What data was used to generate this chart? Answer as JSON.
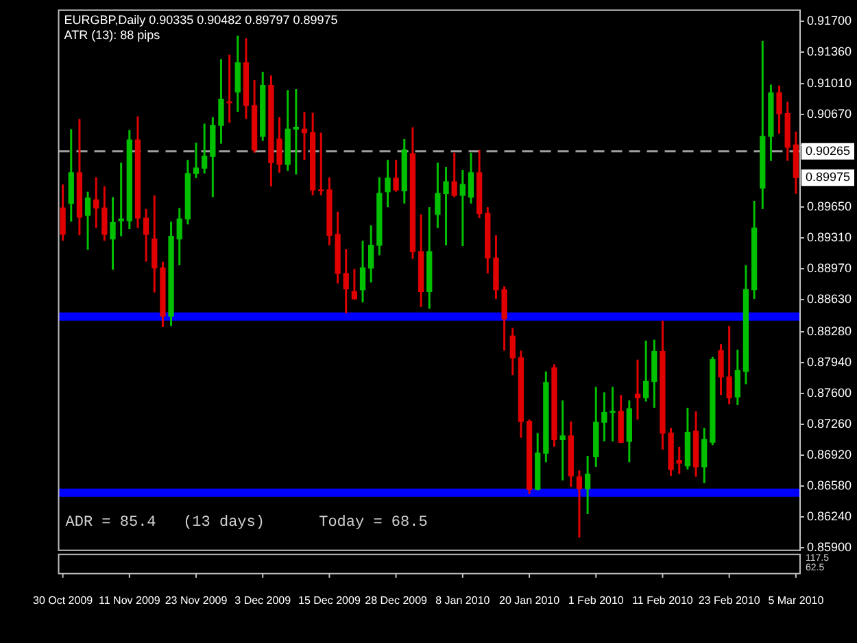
{
  "chart_data": {
    "type": "candlestick",
    "title": "EURGBP,Daily 0.90335 0.90482 0.89797 0.89975",
    "subtitle": "ATR (13): 88 pips",
    "categories": [
      "30 Oct 2009",
      null,
      null,
      null,
      null,
      null,
      null,
      null,
      "11 Nov 2009",
      null,
      null,
      null,
      null,
      null,
      null,
      null,
      "23 Nov 2009",
      null,
      null,
      null,
      null,
      null,
      null,
      null,
      "3 Dec 2009",
      null,
      null,
      null,
      null,
      null,
      null,
      null,
      "15 Dec 2009",
      null,
      null,
      null,
      null,
      null,
      null,
      null,
      "28 Dec 2009",
      null,
      null,
      null,
      null,
      null,
      null,
      null,
      "8 Jan 2010",
      null,
      null,
      null,
      null,
      null,
      null,
      null,
      "20 Jan 2010",
      null,
      null,
      null,
      null,
      null,
      null,
      null,
      "1 Feb 2010",
      null,
      null,
      null,
      null,
      null,
      null,
      null,
      "11 Feb 2010",
      null,
      null,
      null,
      null,
      null,
      null,
      null,
      "23 Feb 2010",
      null,
      null,
      null,
      null,
      null,
      null,
      null,
      "5 Mar 2010"
    ],
    "ohlc": [
      [
        0.8964,
        0.899,
        0.8928,
        0.8935
      ],
      [
        0.8969,
        0.9051,
        0.8949,
        0.9003
      ],
      [
        0.9003,
        0.9062,
        0.8934,
        0.8954
      ],
      [
        0.8956,
        0.8982,
        0.8918,
        0.8975
      ],
      [
        0.8973,
        0.8998,
        0.8942,
        0.8964
      ],
      [
        0.8964,
        0.8988,
        0.8928,
        0.8935
      ],
      [
        0.893,
        0.8976,
        0.8896,
        0.8948
      ],
      [
        0.895,
        0.9014,
        0.8933,
        0.8952
      ],
      [
        0.895,
        0.905,
        0.8941,
        0.9039
      ],
      [
        0.9039,
        0.9065,
        0.8942,
        0.8953
      ],
      [
        0.8953,
        0.8963,
        0.8905,
        0.8935
      ],
      [
        0.893,
        0.8978,
        0.8871,
        0.8898
      ],
      [
        0.8898,
        0.8905,
        0.8833,
        0.8845
      ],
      [
        0.8845,
        0.8949,
        0.8834,
        0.8933
      ],
      [
        0.893,
        0.8964,
        0.8901,
        0.8952
      ],
      [
        0.8952,
        0.9017,
        0.8946,
        0.9002
      ],
      [
        0.9002,
        0.9036,
        0.8997,
        0.9008
      ],
      [
        0.9008,
        0.9057,
        0.9002,
        0.9021
      ],
      [
        0.9021,
        0.9064,
        0.8976,
        0.9055
      ],
      [
        0.9055,
        0.9128,
        0.9035,
        0.9084
      ],
      [
        0.9081,
        0.9133,
        0.9058,
        0.908
      ],
      [
        0.9092,
        0.9154,
        0.907,
        0.9124
      ],
      [
        0.9124,
        0.9151,
        0.9062,
        0.9077
      ],
      [
        0.9077,
        0.9105,
        0.9025,
        0.9028
      ],
      [
        0.9043,
        0.9114,
        0.9038,
        0.9099
      ],
      [
        0.9099,
        0.911,
        0.8988,
        0.9014
      ],
      [
        0.904,
        0.9064,
        0.9003,
        0.9012
      ],
      [
        0.9012,
        0.9094,
        0.9005,
        0.9051
      ],
      [
        0.9051,
        0.9095,
        0.9001,
        0.9053
      ],
      [
        0.9051,
        0.907,
        0.9017,
        0.9047
      ],
      [
        0.9047,
        0.9069,
        0.8978,
        0.8984
      ],
      [
        0.8984,
        0.9047,
        0.8978,
        0.8983
      ],
      [
        0.8984,
        0.8998,
        0.8923,
        0.8934
      ],
      [
        0.8935,
        0.896,
        0.8881,
        0.8892
      ],
      [
        0.8892,
        0.8919,
        0.8848,
        0.8875
      ],
      [
        0.8872,
        0.8897,
        0.8863,
        0.8864
      ],
      [
        0.8874,
        0.8928,
        0.886,
        0.8898
      ],
      [
        0.8898,
        0.8945,
        0.8882,
        0.8923
      ],
      [
        0.8923,
        0.8998,
        0.8912,
        0.898
      ],
      [
        0.8982,
        0.9017,
        0.8965,
        0.8997
      ],
      [
        0.8997,
        0.9017,
        0.8982,
        0.8984
      ],
      [
        0.8983,
        0.904,
        0.8969,
        0.9028
      ],
      [
        0.9024,
        0.9053,
        0.8908,
        0.8916
      ],
      [
        0.8916,
        0.8957,
        0.8855,
        0.8872
      ],
      [
        0.8872,
        0.8965,
        0.8853,
        0.8916
      ],
      [
        0.8957,
        0.9014,
        0.8942,
        0.898
      ],
      [
        0.898,
        0.9009,
        0.8923,
        0.8993
      ],
      [
        0.8993,
        0.9025,
        0.8976,
        0.8978
      ],
      [
        0.8978,
        0.9006,
        0.8922,
        0.899
      ],
      [
        0.8976,
        0.9025,
        0.8969,
        0.9003
      ],
      [
        0.9003,
        0.9028,
        0.8953,
        0.8958
      ],
      [
        0.8958,
        0.8965,
        0.8892,
        0.8909
      ],
      [
        0.8909,
        0.8934,
        0.8864,
        0.8874
      ],
      [
        0.8874,
        0.8878,
        0.8807,
        0.8842
      ],
      [
        0.8823,
        0.8832,
        0.878,
        0.8799
      ],
      [
        0.8799,
        0.8807,
        0.8711,
        0.8729
      ],
      [
        0.8729,
        0.8731,
        0.8649,
        0.8654
      ],
      [
        0.8654,
        0.8716,
        0.8653,
        0.8694
      ],
      [
        0.8694,
        0.8784,
        0.8684,
        0.8772
      ],
      [
        0.8788,
        0.8792,
        0.8701,
        0.8709
      ],
      [
        0.8709,
        0.8752,
        0.8664,
        0.8713
      ],
      [
        0.8713,
        0.8729,
        0.8657,
        0.8669
      ],
      [
        0.8668,
        0.8675,
        0.8601,
        0.8655
      ],
      [
        0.8655,
        0.8691,
        0.8627,
        0.8671
      ],
      [
        0.869,
        0.8767,
        0.8679,
        0.8728
      ],
      [
        0.8728,
        0.8761,
        0.8707,
        0.8739
      ],
      [
        0.8739,
        0.8767,
        0.8707,
        0.874
      ],
      [
        0.874,
        0.8758,
        0.8705,
        0.8706
      ],
      [
        0.8707,
        0.8752,
        0.8684,
        0.8743
      ],
      [
        0.8759,
        0.8797,
        0.8731,
        0.8755
      ],
      [
        0.8755,
        0.8818,
        0.8751,
        0.8773
      ],
      [
        0.8773,
        0.8819,
        0.8744,
        0.8806
      ],
      [
        0.8806,
        0.884,
        0.8698,
        0.8716
      ],
      [
        0.8716,
        0.8722,
        0.8669,
        0.8676
      ],
      [
        0.8686,
        0.8701,
        0.8671,
        0.8683
      ],
      [
        0.868,
        0.8744,
        0.8676,
        0.8717
      ],
      [
        0.8718,
        0.874,
        0.8668,
        0.8679
      ],
      [
        0.8679,
        0.8722,
        0.8661,
        0.8709
      ],
      [
        0.8706,
        0.88,
        0.8703,
        0.8797
      ],
      [
        0.8807,
        0.8814,
        0.8758,
        0.8778
      ],
      [
        0.8778,
        0.8834,
        0.8748,
        0.8755
      ],
      [
        0.8756,
        0.8808,
        0.8747,
        0.8785
      ],
      [
        0.8784,
        0.8901,
        0.877,
        0.8874
      ],
      [
        0.8874,
        0.8972,
        0.8864,
        0.8942
      ],
      [
        0.8986,
        0.9148,
        0.8963,
        0.9043
      ],
      [
        0.9043,
        0.91,
        0.9016,
        0.9091
      ],
      [
        0.9091,
        0.9099,
        0.9046,
        0.9068
      ],
      [
        0.9068,
        0.9081,
        0.9016,
        0.9031
      ],
      [
        0.90335,
        0.90482,
        0.89797,
        0.89975
      ]
    ],
    "colors": [
      "#e00000",
      "#00c000",
      "#e00000",
      "#00c000",
      "#e00000",
      "#e00000",
      "#00c000",
      "#00c000",
      "#00c000",
      "#e00000",
      "#e00000",
      "#e00000",
      "#e00000",
      "#00c000",
      "#00c000",
      "#00c000",
      "#00c000",
      "#00c000",
      "#00c000",
      "#00c000",
      "#e00000",
      "#00c000",
      "#e00000",
      "#e00000",
      "#00c000",
      "#e00000",
      "#e00000",
      "#00c000",
      "#00c000",
      "#e00000",
      "#e00000",
      "#e00000",
      "#e00000",
      "#e00000",
      "#e00000",
      "#e00000",
      "#00c000",
      "#00c000",
      "#00c000",
      "#00c000",
      "#e00000",
      "#00c000",
      "#e00000",
      "#e00000",
      "#00c000",
      "#00c000",
      "#00c000",
      "#e00000",
      "#00c000",
      "#00c000",
      "#e00000",
      "#e00000",
      "#e00000",
      "#e00000",
      "#e00000",
      "#e00000",
      "#e00000",
      "#00c000",
      "#00c000",
      "#e00000",
      "#00c000",
      "#e00000",
      "#e00000",
      "#00c000",
      "#00c000",
      "#00c000",
      "#00c000",
      "#e00000",
      "#00c000",
      "#e00000",
      "#00c000",
      "#00c000",
      "#e00000",
      "#e00000",
      "#e00000",
      "#00c000",
      "#e00000",
      "#00c000",
      "#00c000",
      "#e00000",
      "#e00000",
      "#00c000",
      "#00c000",
      "#00c000",
      "#00c000",
      "#00c000",
      "#e00000",
      "#e00000",
      "#e00000"
    ],
    "ylim": [
      0.8587,
      0.9182
    ],
    "yticks": [
      {
        "value": 0.859,
        "label": "0.85900"
      },
      {
        "value": 0.8624,
        "label": "0.86240"
      },
      {
        "value": 0.8658,
        "label": "0.86580"
      },
      {
        "value": 0.8692,
        "label": "0.86920"
      },
      {
        "value": 0.8726,
        "label": "0.87260"
      },
      {
        "value": 0.876,
        "label": "0.87600"
      },
      {
        "value": 0.8794,
        "label": "0.87940"
      },
      {
        "value": 0.8828,
        "label": "0.88280"
      },
      {
        "value": 0.8863,
        "label": "0.88630"
      },
      {
        "value": 0.8897,
        "label": "0.88970"
      },
      {
        "value": 0.8931,
        "label": "0.89310"
      },
      {
        "value": 0.8965,
        "label": "0.89650"
      },
      {
        "value": 0.9033,
        "label": null
      },
      {
        "value": 0.9067,
        "label": "0.90670"
      },
      {
        "value": 0.9101,
        "label": "0.91010"
      },
      {
        "value": 0.9136,
        "label": "0.91360"
      },
      {
        "value": 0.917,
        "label": "0.91700"
      }
    ],
    "ref_lines": [
      {
        "axis": "y",
        "value": 0.90265,
        "label": "0.90265",
        "color": "#a0a0a0",
        "line_style": "dashed"
      }
    ],
    "bands": [
      {
        "axis": "y",
        "from": 0.884,
        "to": 0.8849,
        "color": "#0000ff"
      },
      {
        "axis": "y",
        "from": 0.8646,
        "to": 0.8655,
        "color": "#0000ff"
      }
    ],
    "annotations": [
      "ADR = 85.4   (13 days)      Today = 68.5",
      "0.89975",
      "117.5",
      "62.5"
    ],
    "grid": false,
    "legend": false
  }
}
